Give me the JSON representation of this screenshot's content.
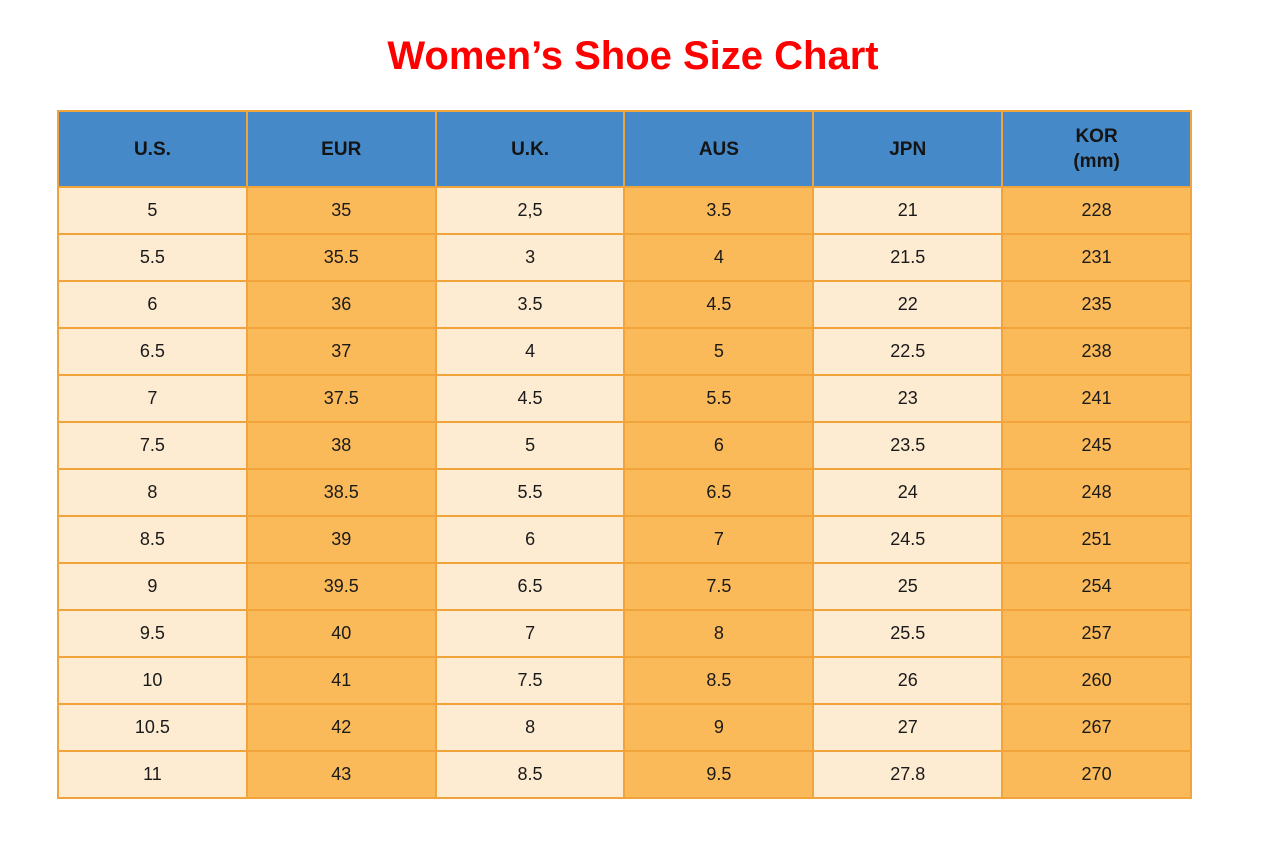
{
  "page": {
    "title": "Women’s Shoe Size Chart"
  },
  "chart_data": {
    "type": "table",
    "title": "Women’s Shoe Size Chart",
    "columns": [
      {
        "id": "us",
        "label": "U.S."
      },
      {
        "id": "eur",
        "label": "EUR"
      },
      {
        "id": "uk",
        "label": "U.K."
      },
      {
        "id": "aus",
        "label": "AUS"
      },
      {
        "id": "jpn",
        "label": "JPN"
      },
      {
        "id": "kor",
        "label": "KOR",
        "sublabel": "(mm)"
      }
    ],
    "rows": [
      [
        "5",
        "35",
        "2,5",
        "3.5",
        "21",
        "228"
      ],
      [
        "5.5",
        "35.5",
        "3",
        "4",
        "21.5",
        "231"
      ],
      [
        "6",
        "36",
        "3.5",
        "4.5",
        "22",
        "235"
      ],
      [
        "6.5",
        "37",
        "4",
        "5",
        "22.5",
        "238"
      ],
      [
        "7",
        "37.5",
        "4.5",
        "5.5",
        "23",
        "241"
      ],
      [
        "7.5",
        "38",
        "5",
        "6",
        "23.5",
        "245"
      ],
      [
        "8",
        "38.5",
        "5.5",
        "6.5",
        "24",
        "248"
      ],
      [
        "8.5",
        "39",
        "6",
        "7",
        "24.5",
        "251"
      ],
      [
        "9",
        "39.5",
        "6.5",
        "7.5",
        "25",
        "254"
      ],
      [
        "9.5",
        "40",
        "7",
        "8",
        "25.5",
        "257"
      ],
      [
        "10",
        "41",
        "7.5",
        "8.5",
        "26",
        "260"
      ],
      [
        "10.5",
        "42",
        "8",
        "9",
        "27",
        "267"
      ],
      [
        "11",
        "43",
        "8.5",
        "9.5",
        "27.8",
        "270"
      ]
    ]
  },
  "colors": {
    "title_text": "#ff0000",
    "header_bg": "#4589c8",
    "header_text": "#141414",
    "cell_light_bg": "#fdebd2",
    "cell_orange_bg": "#fbba59",
    "grid_border": "#f2a43c",
    "cell_text": "#1a1a1a"
  }
}
